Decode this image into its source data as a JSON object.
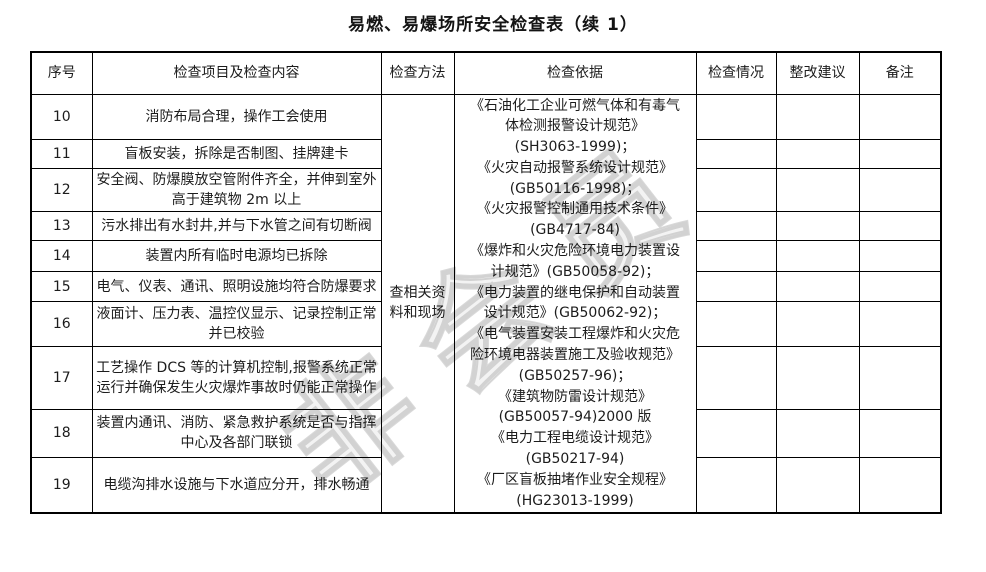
{
  "title": "易燃、易爆场所安全检查表（续 1）",
  "watermark": "非会员",
  "table": {
    "columns": [
      "序号",
      "检查项目及检查内容",
      "检查方法",
      "检查依据",
      "检查情况",
      "整改建议",
      "备注"
    ],
    "method": "查相关资料和现场",
    "basis_lines": [
      "《石油化工企业可燃气体和有毒气",
      "体检测报警设计规范》",
      "(SH3063-1999)；",
      "《火灾自动报警系统设计规范》",
      "(GB50116-1998)；",
      "《火灾报警控制通用技术条件》",
      "(GB4717-84)",
      "《爆炸和火灾危险环境电力装置设",
      "计规范》(GB50058-92)；",
      "《电力装置的继电保护和自动装置",
      "设计规范》(GB50062-92)；",
      "《电气装置安装工程爆炸和火灾危",
      "险环境电器装置施工及验收规范》",
      "(GB50257-96)；",
      "《建筑物防雷设计规范》",
      "(GB50057-94)2000 版",
      "《电力工程电缆设计规范》",
      "(GB50217-94)",
      "《厂区盲板抽堵作业安全规程》",
      "(HG23013-1999)"
    ],
    "rows": [
      {
        "no": "10",
        "content": "消防布局合理，操作工会使用"
      },
      {
        "no": "11",
        "content": "盲板安装，拆除是否制图、挂牌建卡"
      },
      {
        "no": "12",
        "content": "安全阀、防爆膜放空管附件齐全，并伸到室外高于建筑物 2m 以上"
      },
      {
        "no": "13",
        "content": "污水排出有水封井,并与下水管之间有切断阀"
      },
      {
        "no": "14",
        "content": "装置内所有临时电源均已拆除"
      },
      {
        "no": "15",
        "content": "电气、仪表、通讯、照明设施均符合防爆要求"
      },
      {
        "no": "16",
        "content": "液面计、压力表、温控仪显示、记录控制正常并已校验"
      },
      {
        "no": "17",
        "content": "工艺操作 DCS 等的计算机控制,报警系统正常运行并确保发生火灾爆炸事故时仍能正常操作"
      },
      {
        "no": "18",
        "content": "装置内通讯、消防、紧急救护系统是否与指挥中心及各部门联锁"
      },
      {
        "no": "19",
        "content": "电缆沟排水设施与下水道应分开，排水畅通"
      }
    ]
  }
}
